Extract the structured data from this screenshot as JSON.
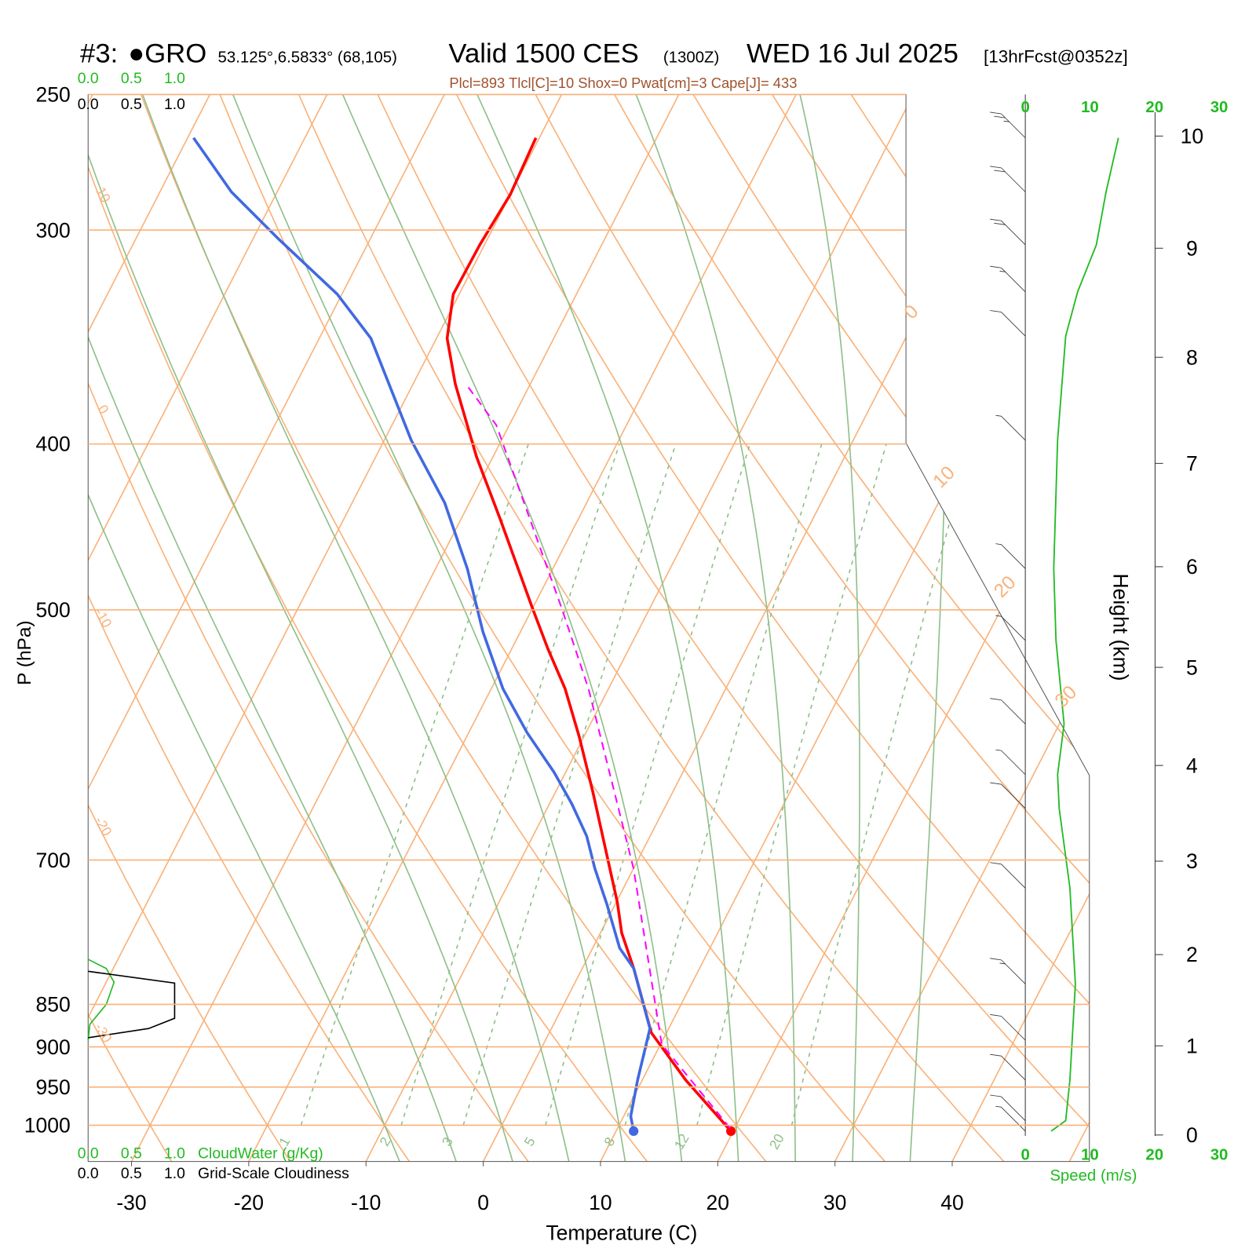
{
  "chart_data": {
    "type": "skewt",
    "title": [
      "#3:",
      "●GRO",
      "53.125°,6.5833° (68,105)",
      "Valid 1500 CES",
      "(1300Z)",
      "WED 16 Jul 2025",
      "[13hrFcst@0352z]"
    ],
    "subtitle": "Plcl=893 Tlcl[C]=10 Shox=0 Pwat[cm]=3 Cape[J]= 433",
    "xlabel": "Temperature (C)",
    "ylabel": "P (hPa)",
    "xlim": [
      -33.7,
      51.7
    ],
    "xticks": [
      -30,
      -20,
      -10,
      0,
      10,
      20,
      30,
      40
    ],
    "ylim": [
      1050,
      250
    ],
    "yticks": [
      250,
      300,
      400,
      500,
      700,
      850,
      900,
      950,
      1000
    ],
    "log_y": true,
    "isotherm_labels": [
      0,
      10,
      20,
      30
    ],
    "dry_adiabat_labels": [
      10,
      0,
      -10,
      -20,
      -30
    ],
    "mixing_ratio_labels": [
      1,
      2,
      3,
      5,
      8,
      12,
      20
    ],
    "series": [
      {
        "color": "#ff0000",
        "dashed": false,
        "pressure": [
          1008,
          941,
          883,
          810,
          772,
          741,
          639,
          593,
          556,
          527,
          499,
          443,
          407,
          369,
          347,
          327,
          306,
          286,
          265
        ],
        "values": [
          19.8,
          13.7,
          8.7,
          4.4,
          1.8,
          0.1,
          -6.8,
          -10.4,
          -13.7,
          -16.9,
          -20.0,
          -26.6,
          -31.4,
          -36.4,
          -39.1,
          -40.5,
          -40.4,
          -40.0,
          -40.3
        ]
      },
      {
        "color": "#4169e1",
        "dashed": false,
        "pressure": [
          1008,
          988,
          941,
          878,
          810,
          788,
          743,
          708,
          678,
          649,
          622,
          590,
          556,
          515,
          473,
          433,
          398,
          347,
          327,
          304,
          285,
          265
        ],
        "values": [
          11.5,
          10.6,
          9.6,
          8.4,
          4.4,
          2.3,
          -0.7,
          -3.3,
          -5.4,
          -8.1,
          -11.0,
          -15.0,
          -19.0,
          -23.2,
          -27.3,
          -32.1,
          -37.7,
          -45.6,
          -50.4,
          -57.7,
          -63.9,
          -69.5
        ]
      },
      {
        "color": "#ff00ff",
        "dashed": true,
        "pressure": [
          1004,
          897,
          708,
          556,
          499,
          390,
          369
        ],
        "values": [
          19.6,
          10.1,
          0.0,
          -11.7,
          -17.5,
          -31.1,
          -35.5
        ]
      }
    ],
    "cloud": {
      "xlim": [
        0,
        1
      ],
      "cloudwater": {
        "title": "CloudWater (g/Kg)",
        "color": "#22bb22",
        "ticks": [
          {
            "value": 0,
            "label": "0.0"
          },
          {
            "value": 0.5,
            "label": "0.5"
          },
          {
            "value": 1,
            "label": "1.0"
          }
        ],
        "pressure": [
          800,
          810,
          825,
          850,
          873,
          892
        ],
        "values": [
          0,
          0.21,
          0.3,
          0.21,
          0.02,
          0
        ]
      },
      "cloudiness": {
        "title": "Grid-Scale Cloudiness",
        "color": "#000000",
        "ticks": [
          {
            "value": 0,
            "label": "0.0"
          },
          {
            "value": 0.5,
            "label": "0.5"
          },
          {
            "value": 1,
            "label": "1.0"
          }
        ],
        "pressure": [
          813,
          826,
          866,
          878,
          889
        ],
        "values": [
          0,
          1.0,
          1.0,
          0.7,
          0
        ]
      }
    },
    "height_axis": {
      "label": "Height (km)",
      "ticks": [
        0,
        1,
        2,
        3,
        4,
        5,
        6,
        7,
        8,
        9,
        10
      ]
    },
    "wind": {
      "label": "Speed (m/s)",
      "color": "#22bb22",
      "xlim": [
        0,
        30
      ],
      "ticks": [
        0,
        10,
        20,
        30
      ],
      "pressure": [
        1008,
        994,
        941,
        892,
        827,
        727,
        653,
        624,
        583,
        521,
        473,
        398,
        346,
        326,
        306,
        285,
        265
      ],
      "values": [
        4,
        6.25,
        6.9,
        7.25,
        7.75,
        6.9,
        5.25,
        5,
        6,
        4.75,
        4.4,
        5,
        6.25,
        8.1,
        11,
        12.5,
        14.4
      ]
    }
  }
}
